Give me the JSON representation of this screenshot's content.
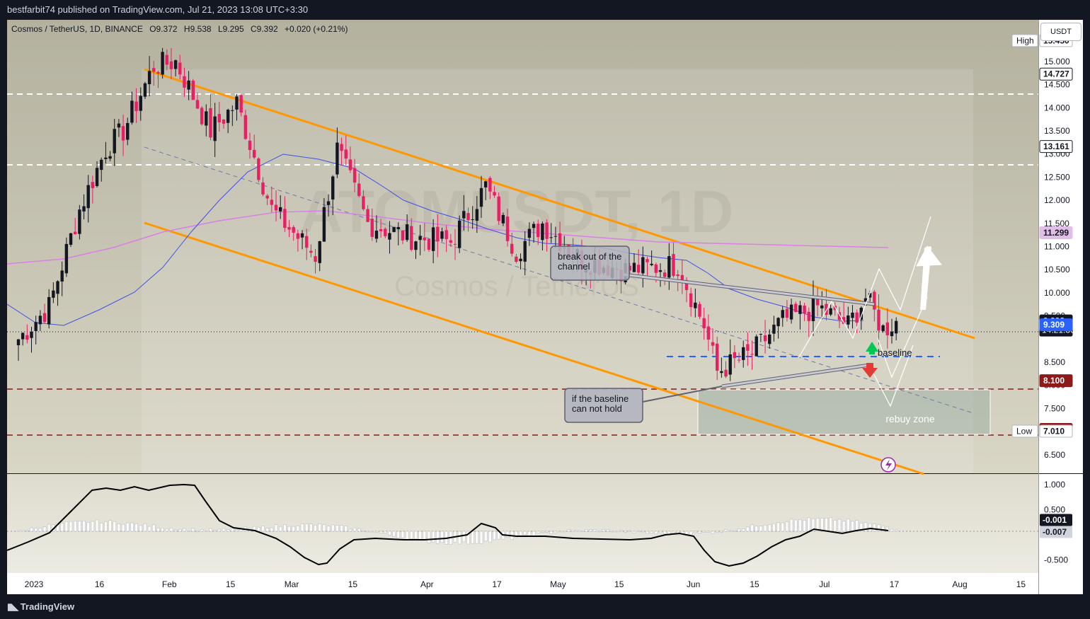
{
  "header": {
    "published_text": "bestfarbit74 published on TradingView.com, Jul 21, 2023 13:08 UTC+3:30",
    "symbol_line": "Cosmos / TetherUS, 1D, BINANCE",
    "open": "O9.372",
    "high": "H9.538",
    "low": "L9.295",
    "close": "C9.392",
    "change": "+0.020 (+0.21%)",
    "currency_button": "USDT"
  },
  "watermark": {
    "ticker": "ATOMUSDT, 1D",
    "name": "Cosmos / TetherUS"
  },
  "footer": {
    "brand": "TradingView"
  },
  "colors": {
    "bg": "#b5b2a2",
    "up": "#131722",
    "down": "#e91e63",
    "channel": "#ff9800",
    "ma50": "#3f51e6",
    "ma200": "#d980e6",
    "resistance": "#ffffff",
    "support": "#8b1a1a",
    "baseline": "#2962ff"
  },
  "price_axis": {
    "ticks": [
      "15.000",
      "14.500",
      "14.000",
      "13.500",
      "13.000",
      "12.500",
      "12.000",
      "11.500",
      "11.000",
      "10.500",
      "10.000",
      "9.500",
      "8.500",
      "8.000",
      "7.500",
      "6.500"
    ],
    "tags": [
      {
        "label": "High",
        "value": "15.450"
      },
      {
        "label": "",
        "value": "14.727"
      },
      {
        "label": "",
        "value": "13.161"
      },
      {
        "label": "",
        "value": "11.299"
      },
      {
        "label": "",
        "value": "9.392",
        "sub": "14:21:36"
      },
      {
        "label": "",
        "value": "9.309"
      },
      {
        "label": "",
        "value": "8.100"
      },
      {
        "label": "",
        "value": "7.047"
      },
      {
        "label": "Low",
        "value": "7.010"
      }
    ]
  },
  "indicator_axis": {
    "ticks": [
      "1.000",
      "0.500",
      "-0.500"
    ],
    "tags": [
      "-0.001",
      "-0.007"
    ]
  },
  "time_axis": {
    "labels": [
      "2023",
      "16",
      "Feb",
      "15",
      "Mar",
      "15",
      "Apr",
      "17",
      "May",
      "15",
      "Jun",
      "15",
      "Jul",
      "17",
      "Aug",
      "15"
    ]
  },
  "annotations": {
    "breakout": "break out of the channel",
    "baseline": "baseline",
    "hold": "if the baseline can not hold",
    "rebuy": "rebuy zone"
  },
  "chart_data": {
    "type": "candlestick",
    "symbol": "Cosmos / TetherUS",
    "interval": "1D",
    "ylim": [
      6.1,
      15.9
    ],
    "levels": {
      "high": 15.45,
      "resistance_1": 14.727,
      "resistance_2": 13.161,
      "ma200_last": 11.299,
      "last": 9.392,
      "baseline": 9.309,
      "support_1": 8.1,
      "support_2": 7.047,
      "low": 7.01
    },
    "close_path": [
      {
        "x": "Jan 01",
        "y": 9.0
      },
      {
        "x": "Jan 08",
        "y": 9.7
      },
      {
        "x": "Jan 15",
        "y": 11.8
      },
      {
        "x": "Jan 21",
        "y": 13.1
      },
      {
        "x": "Jan 25",
        "y": 13.5
      },
      {
        "x": "Feb 01",
        "y": 14.9
      },
      {
        "x": "Feb 06",
        "y": 15.0
      },
      {
        "x": "Feb 14",
        "y": 13.5
      },
      {
        "x": "Feb 20",
        "y": 14.1
      },
      {
        "x": "Feb 28",
        "y": 11.8
      },
      {
        "x": "Mar 10",
        "y": 10.8
      },
      {
        "x": "Mar 15",
        "y": 13.1
      },
      {
        "x": "Mar 22",
        "y": 11.5
      },
      {
        "x": "Apr 01",
        "y": 11.2
      },
      {
        "x": "Apr 10",
        "y": 11.1
      },
      {
        "x": "Apr 18",
        "y": 12.3
      },
      {
        "x": "Apr 25",
        "y": 10.9
      },
      {
        "x": "May 01",
        "y": 11.5
      },
      {
        "x": "May 10",
        "y": 10.7
      },
      {
        "x": "May 20",
        "y": 10.5
      },
      {
        "x": "Jun 01",
        "y": 10.6
      },
      {
        "x": "Jun 07",
        "y": 9.3
      },
      {
        "x": "Jun 10",
        "y": 8.3
      },
      {
        "x": "Jun 18",
        "y": 8.7
      },
      {
        "x": "Jun 25",
        "y": 9.4
      },
      {
        "x": "Jul 03",
        "y": 9.7
      },
      {
        "x": "Jul 10",
        "y": 9.3
      },
      {
        "x": "Jul 14",
        "y": 9.9
      },
      {
        "x": "Jul 18",
        "y": 9.2
      },
      {
        "x": "Jul 21",
        "y": 9.392
      }
    ],
    "oscillator": {
      "ylim": [
        -0.75,
        1.2
      ],
      "last": [
        -0.001,
        -0.007
      ]
    }
  }
}
